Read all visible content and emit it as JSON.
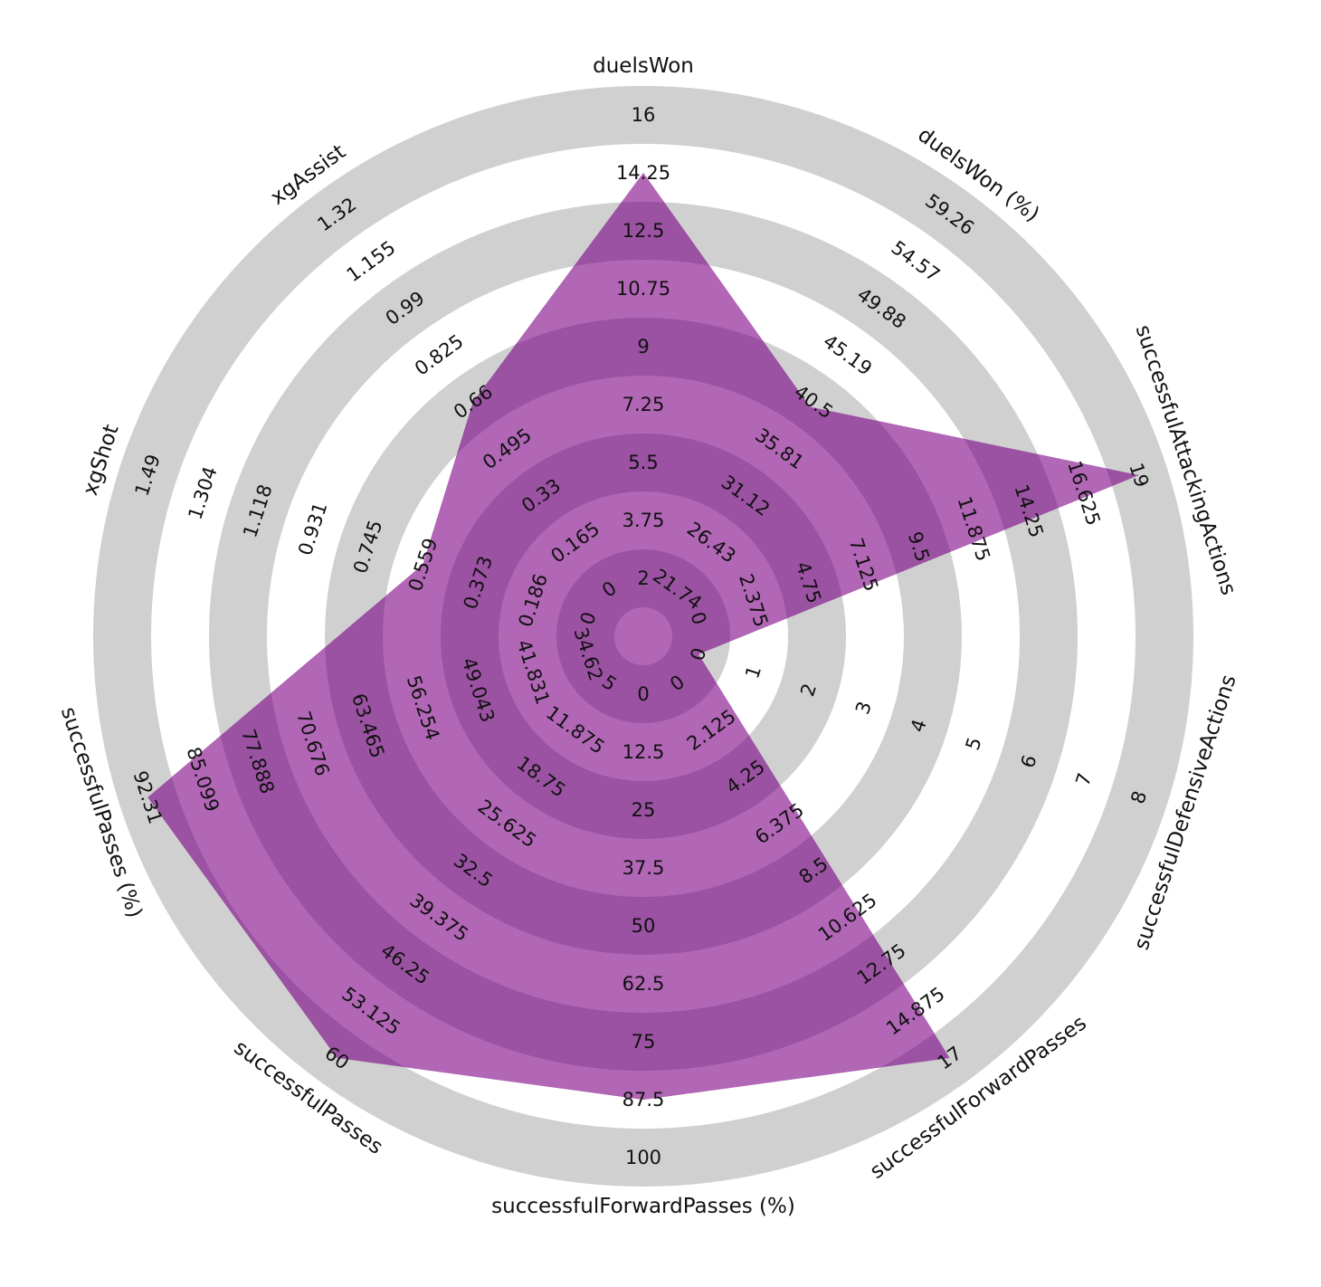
{
  "chart_data": {
    "type": "radar",
    "title": "",
    "colors": {
      "fill": "#9b30a4",
      "ring_light": "#d0d0d0",
      "ring_dark": "#ffffff",
      "inner_ring_light": "#b266b6",
      "inner_ring_dark": "#9b52a2"
    },
    "axes": [
      {
        "name": "duelsWon",
        "ticks": [
          "2",
          "3.75",
          "5.5",
          "7.25",
          "9",
          "10.75",
          "12.5",
          "14.25",
          "16"
        ],
        "range": [
          2,
          16
        ],
        "value": 14.25
      },
      {
        "name": "duelsWon (%)",
        "ticks": [
          "21.74",
          "26.43",
          "31.12",
          "35.81",
          "40.5",
          "45.19",
          "49.88",
          "54.57",
          "59.26"
        ],
        "range": [
          21.74,
          59.26
        ],
        "value": 40.0
      },
      {
        "name": "successfulAttackingActions",
        "ticks": [
          "0",
          "2.375",
          "4.75",
          "7.125",
          "9.5",
          "11.875",
          "14.25",
          "16.625",
          "19"
        ],
        "range": [
          0,
          19
        ],
        "value": 19
      },
      {
        "name": "successfulDefensiveActions",
        "ticks": [
          "0",
          "1",
          "2",
          "3",
          "4",
          "5",
          "6",
          "7",
          "8"
        ],
        "range": [
          0,
          8
        ],
        "value": 0
      },
      {
        "name": "successfulForwardPasses",
        "ticks": [
          "0",
          "2.125",
          "4.25",
          "6.375",
          "8.5",
          "10.625",
          "12.75",
          "14.875",
          "17"
        ],
        "range": [
          0,
          17
        ],
        "value": 17
      },
      {
        "name": "successfulForwardPasses (%)",
        "ticks": [
          "0",
          "12.5",
          "25",
          "37.5",
          "50",
          "62.5",
          "75",
          "87.5",
          "100"
        ],
        "range": [
          0,
          100
        ],
        "value": 87.5
      },
      {
        "name": "successfulPasses",
        "ticks": [
          "5",
          "11.875",
          "18.75",
          "25.625",
          "32.5",
          "39.375",
          "46.25",
          "53.125",
          "60"
        ],
        "range": [
          5,
          60
        ],
        "value": 60
      },
      {
        "name": "successfulPasses (%)",
        "ticks": [
          "34.62",
          "41.831",
          "49.043",
          "56.254",
          "63.465",
          "70.676",
          "77.888",
          "85.099",
          "92.31"
        ],
        "range": [
          34.62,
          92.31
        ],
        "value": 92.31
      },
      {
        "name": "xgShot",
        "ticks": [
          "0",
          "0.186",
          "0.373",
          "0.559",
          "0.745",
          "0.931",
          "1.118",
          "1.304",
          "1.49"
        ],
        "range": [
          0,
          1.49
        ],
        "value": 0.559
      },
      {
        "name": "xgAssist",
        "ticks": [
          "0",
          "0.165",
          "0.33",
          "0.495",
          "0.66",
          "0.825",
          "0.99",
          "1.155",
          "1.32"
        ],
        "range": [
          0,
          1.32
        ],
        "value": 0.66
      }
    ]
  }
}
